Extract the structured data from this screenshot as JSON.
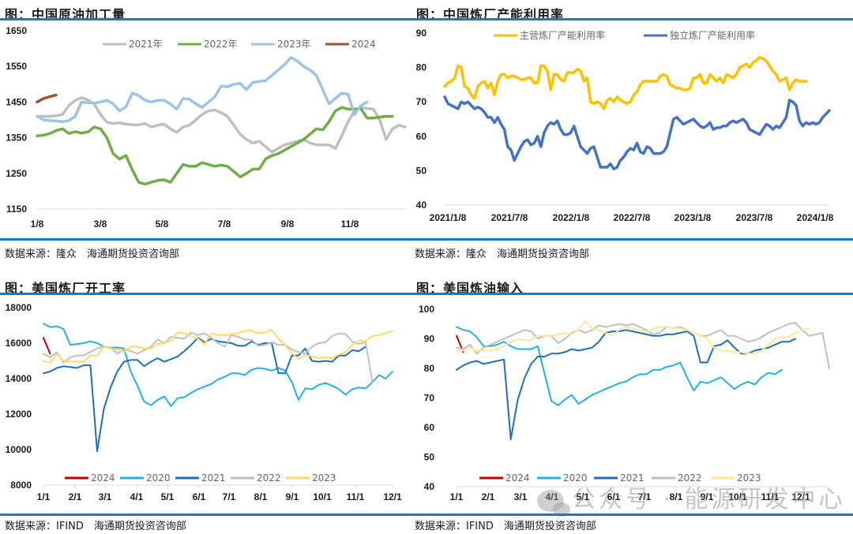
{
  "panels": [
    {
      "title": "图：中国原油加工量",
      "source": "数据来源：隆众　海通期货投资咨询部"
    },
    {
      "title": "图：中国炼厂产能利用率",
      "source": "数据来源：隆众　海通期货投资咨询部"
    },
    {
      "title": "图：美国炼厂开工率",
      "source": "数据来源：IFIND　海通期货投资咨询部"
    },
    {
      "title": "图：美国炼油输入",
      "source": "数据来源：IFIND　海通期货投资咨询部"
    }
  ],
  "watermark": "公众号 · 能源研发中心",
  "chart_data": [
    {
      "type": "line",
      "title": "图：中国原油加工量",
      "xlabel": "",
      "ylabel": "",
      "ylim": [
        1150,
        1650
      ],
      "yticks": [
        1150,
        1250,
        1350,
        1450,
        1550,
        1650
      ],
      "xticks": [
        "1/8",
        "3/8",
        "5/8",
        "7/8",
        "9/8",
        "11/8"
      ],
      "x_points": 52,
      "grid": false,
      "legend": "top",
      "series": [
        {
          "name": "2021年",
          "color": "#bfbfbf",
          "values": [
            1410,
            1410,
            1410,
            1412,
            1415,
            1440,
            1455,
            1462,
            1456,
            1445,
            1415,
            1393,
            1390,
            1392,
            1388,
            1386,
            1386,
            1390,
            1380,
            1385,
            1388,
            1375,
            1365,
            1380,
            1385,
            1400,
            1415,
            1425,
            1428,
            1420,
            1410,
            1385,
            1360,
            1345,
            1335,
            1340,
            1325,
            1310,
            1320,
            1330,
            1335,
            1340,
            1345,
            1335,
            1330,
            1330,
            1330,
            1320,
            1355,
            1395,
            1425,
            1435,
            1432,
            1430,
            1400,
            1345,
            1375,
            1385,
            1380
          ]
        },
        {
          "name": "2022年",
          "color": "#70ad47",
          "values": [
            1355,
            1357,
            1362,
            1370,
            1375,
            1362,
            1367,
            1363,
            1366,
            1380,
            1375,
            1350,
            1305,
            1290,
            1300,
            1260,
            1225,
            1220,
            1225,
            1230,
            1232,
            1225,
            1250,
            1275,
            1270,
            1270,
            1280,
            1275,
            1270,
            1273,
            1270,
            1255,
            1240,
            1250,
            1262,
            1262,
            1290,
            1300,
            1305,
            1315,
            1325,
            1335,
            1345,
            1360,
            1375,
            1372,
            1395,
            1425,
            1435,
            1430,
            1430,
            1432,
            1405,
            1405,
            1408,
            1410,
            1410
          ]
        },
        {
          "name": "2023年",
          "color": "#9dc3e6",
          "values": [
            1410,
            1400,
            1398,
            1397,
            1395,
            1398,
            1410,
            1450,
            1448,
            1447,
            1450,
            1455,
            1445,
            1425,
            1437,
            1475,
            1468,
            1455,
            1450,
            1455,
            1455,
            1445,
            1430,
            1460,
            1458,
            1445,
            1435,
            1450,
            1465,
            1495,
            1493,
            1500,
            1502,
            1485,
            1505,
            1508,
            1510,
            1525,
            1540,
            1555,
            1575,
            1565,
            1550,
            1540,
            1525,
            1485,
            1445,
            1460,
            1475,
            1472,
            1415,
            1440,
            1450
          ]
        },
        {
          "name": "2024",
          "color": "#a0522d",
          "values": [
            1450,
            1460,
            1465,
            1470
          ]
        }
      ]
    },
    {
      "type": "line",
      "title": "图：中国炼厂产能利用率",
      "xlabel": "",
      "ylabel": "",
      "ylim": [
        40,
        90
      ],
      "yticks": [
        40,
        50,
        60,
        70,
        80,
        90
      ],
      "xticks": [
        "2021/1/8",
        "2021/7/8",
        "2022/1/8",
        "2022/7/8",
        "2023/1/8",
        "2023/7/8",
        "2024/1/8"
      ],
      "grid": false,
      "legend": "top",
      "series": [
        {
          "name": "主营炼厂产能利用率",
          "color": "#ffc000",
          "values": [
            74.5,
            75.5,
            76,
            77,
            80.5,
            80,
            74.5,
            74,
            72,
            71,
            74.5,
            75.5,
            76,
            74,
            75.5,
            72,
            76,
            78,
            78,
            77,
            77.5,
            77.5,
            77,
            76.5,
            76.5,
            77,
            77,
            75.5,
            75.5,
            80.5,
            80.5,
            79,
            73.5,
            78,
            78,
            76.5,
            76,
            78.5,
            78.5,
            78.5,
            79.5,
            79,
            76,
            77,
            70,
            69.5,
            70,
            69.5,
            68,
            70.5,
            71,
            70,
            71.5,
            70.5,
            70,
            69.5,
            70,
            72,
            73,
            75,
            76,
            76,
            76,
            76,
            76,
            77.5,
            78,
            77.5,
            75,
            74.5,
            74,
            74,
            73.5,
            73.5,
            74,
            77,
            77,
            78,
            75.5,
            75.5,
            78,
            77,
            76,
            77,
            75.5,
            78,
            77.5,
            77,
            78,
            80,
            80.5,
            81,
            80,
            81.5,
            82,
            83,
            82.5,
            82,
            80.5,
            79,
            78,
            76,
            76.5,
            77,
            73.5,
            75.5,
            76.5,
            76,
            76,
            76
          ]
        },
        {
          "name": "独立炼厂产能利用率",
          "color": "#4472c4",
          "values": [
            71.5,
            69.5,
            69,
            68.5,
            68,
            70,
            69.5,
            70,
            69,
            68,
            68.5,
            68,
            67,
            65.5,
            65.5,
            64,
            65.5,
            63.5,
            62,
            57,
            56,
            53,
            55,
            57,
            58.5,
            59,
            57.5,
            58,
            60,
            57,
            61,
            63,
            64,
            63.5,
            64.5,
            62,
            60.5,
            60.5,
            61,
            63,
            60,
            57,
            56,
            55,
            56.5,
            57,
            54,
            51,
            51,
            51,
            52,
            50.5,
            51,
            53,
            54,
            55.5,
            56.5,
            56,
            58,
            55.5,
            55,
            57,
            56.5,
            55,
            55,
            55,
            55.5,
            57,
            61,
            65,
            65.5,
            64.5,
            63.5,
            64,
            64.5,
            65,
            64,
            63,
            62.5,
            63,
            64,
            62,
            62.5,
            62.5,
            63,
            63,
            64,
            64.5,
            64,
            64.5,
            65,
            64,
            62,
            61.5,
            61,
            60.5,
            62,
            63.5,
            63,
            62,
            63,
            62.5,
            64,
            65.5,
            70.5,
            70,
            69,
            64.5,
            63,
            64,
            63.5,
            64,
            63.5,
            64,
            65.5,
            66.5,
            67.5
          ]
        }
      ]
    },
    {
      "type": "line",
      "title": "图：美国炼厂开工率",
      "xlabel": "",
      "ylabel": "",
      "ylim": [
        8000,
        18000
      ],
      "yticks": [
        8000,
        10000,
        12000,
        14000,
        16000,
        18000
      ],
      "xticks": [
        "1/1",
        "2/1",
        "3/1",
        "4/1",
        "5/1",
        "6/1",
        "7/1",
        "8/1",
        "9/1",
        "10/1",
        "11/1",
        "12/1"
      ],
      "grid": false,
      "legend": "bottom",
      "series": [
        {
          "name": "2024",
          "color": "#c00000",
          "values": [
            16300,
            15400
          ]
        },
        {
          "name": "2020",
          "color": "#23b0e6",
          "values": [
            17100,
            16900,
            16950,
            16800,
            15900,
            15950,
            16000,
            16100,
            16000,
            15800,
            15750,
            15750,
            15700,
            14400,
            13600,
            12700,
            12500,
            12800,
            13000,
            12450,
            12900,
            12950,
            13200,
            13400,
            13550,
            13700,
            13950,
            14100,
            14300,
            14300,
            14200,
            14500,
            14600,
            14550,
            14450,
            14600,
            14450,
            13800,
            12800,
            13450,
            13400,
            13650,
            13750,
            13600,
            13400,
            13100,
            13400,
            13500,
            13450,
            13800,
            14200,
            14000,
            14400
          ]
        },
        {
          "name": "2021",
          "color": "#1f6fb4",
          "values": [
            14300,
            14400,
            14600,
            14700,
            14650,
            14600,
            14750,
            14750,
            9900,
            12300,
            13500,
            14400,
            14950,
            15050,
            15050,
            14700,
            14950,
            15150,
            14950,
            15100,
            15250,
            15550,
            15900,
            16300,
            16050,
            16250,
            16100,
            16050,
            16000,
            15850,
            15850,
            16100,
            15900,
            16000,
            16000,
            14300,
            14300,
            15300,
            15300,
            15700,
            15000,
            14950,
            15000,
            14950,
            15300,
            15300,
            15600,
            15550,
            15800
          ]
        },
        {
          "name": "2022",
          "color": "#bfbfbf",
          "values": [
            15400,
            15200,
            15500,
            14900,
            15200,
            15300,
            15300,
            15500,
            15700,
            15800,
            15750,
            15400,
            15650,
            15550,
            15400,
            15600,
            15800,
            16200,
            16000,
            16350,
            16300,
            16250,
            16600,
            16450,
            16550,
            16300,
            16000,
            15800,
            16450,
            16350,
            16200,
            16200,
            15850,
            15900,
            16050,
            15900,
            15900,
            15650,
            15500,
            15400,
            15800,
            16000,
            16050,
            16400,
            16550,
            16500,
            16100,
            15950,
            16050,
            13800
          ]
        },
        {
          "name": "2023",
          "color": "#ffd966",
          "values": [
            15000,
            14900,
            15400,
            15000,
            14950,
            14950,
            14950,
            15300,
            15300,
            15800,
            15700,
            15650,
            15500,
            15800,
            15800,
            15700,
            15700,
            15950,
            16000,
            16150,
            16600,
            16550,
            16400,
            16250,
            15950,
            16550,
            16450,
            16450,
            16500,
            16550,
            16700,
            16700,
            16550,
            16600,
            16750,
            16250,
            15900,
            15450,
            15100,
            15350,
            15250,
            15150,
            15200,
            15150,
            15350,
            15500,
            15900,
            16150,
            16100,
            16400,
            16450,
            16550,
            16700
          ]
        }
      ]
    },
    {
      "type": "line",
      "title": "图：美国炼油输入",
      "xlabel": "",
      "ylabel": "",
      "ylim": [
        40,
        100
      ],
      "yticks": [
        40,
        50,
        60,
        70,
        80,
        90,
        100
      ],
      "xticks": [
        "1/1",
        "2/1",
        "3/1",
        "4/1",
        "5/1",
        "6/1",
        "7/1",
        "8/1",
        "9/1",
        "10/1",
        "11/1",
        "12/1"
      ],
      "grid": false,
      "legend": "bottom",
      "series": [
        {
          "name": "2024",
          "color": "#c00000",
          "values": [
            91,
            85.5
          ]
        },
        {
          "name": "2020",
          "color": "#23b0e6",
          "values": [
            94,
            93,
            92.5,
            90.5,
            87.5,
            87.5,
            88,
            89,
            87.5,
            86.5,
            86.5,
            86.5,
            87.5,
            78,
            69,
            67.5,
            69.5,
            71,
            68,
            69.5,
            71,
            72,
            73,
            74,
            75,
            75.5,
            77,
            78,
            78,
            79.5,
            79.5,
            80.5,
            81,
            82,
            77,
            72.5,
            75.5,
            75,
            76,
            77,
            75,
            73,
            74.5,
            75.5,
            74.5,
            77,
            78.5,
            78,
            79.5
          ]
        },
        {
          "name": "2021",
          "color": "#1f6fb4",
          "values": [
            79.5,
            81,
            82,
            82.5,
            81.5,
            82,
            82.5,
            83,
            56,
            69,
            76.5,
            81.5,
            84,
            84,
            85,
            85,
            85.5,
            86.5,
            86,
            86.5,
            87,
            89,
            92,
            92.5,
            92.5,
            93,
            92.5,
            92,
            91.5,
            91,
            91,
            91.5,
            91.5,
            92,
            92.5,
            91,
            82,
            82,
            87.5,
            88,
            89.5,
            87,
            85,
            85,
            86,
            86.5,
            87,
            88,
            89,
            89,
            90
          ]
        },
        {
          "name": "2022",
          "color": "#bfbfbf",
          "values": [
            87,
            86.5,
            88,
            85,
            87,
            88,
            89,
            90,
            91,
            92,
            93,
            92.5,
            90,
            91,
            91,
            88.5,
            90,
            92,
            93,
            92,
            93,
            94.5,
            94,
            94.5,
            95,
            94.5,
            95,
            94,
            93,
            91.5,
            92,
            94,
            93.5,
            94,
            93,
            92,
            91,
            91,
            92,
            93,
            91,
            91,
            90,
            89,
            89.5,
            90.5,
            92,
            93,
            94,
            95,
            95.5,
            93,
            91,
            91.5,
            92,
            80
          ]
        },
        {
          "name": "2023",
          "color": "#ffe699",
          "values": [
            86,
            86,
            87,
            86,
            86,
            86,
            86.5,
            87.5,
            89,
            90,
            89.5,
            89.5,
            91,
            91,
            91,
            91.5,
            92,
            91.5,
            93,
            96,
            93.5,
            93,
            92,
            91,
            93,
            94,
            93.5,
            93,
            92,
            93.5,
            94,
            94,
            93.5,
            93.5,
            93,
            92,
            91,
            90,
            87,
            86,
            86,
            85.5,
            85.5,
            85,
            85,
            86,
            88,
            90,
            90.5,
            90.5,
            92,
            93,
            93.5
          ]
        }
      ]
    }
  ]
}
